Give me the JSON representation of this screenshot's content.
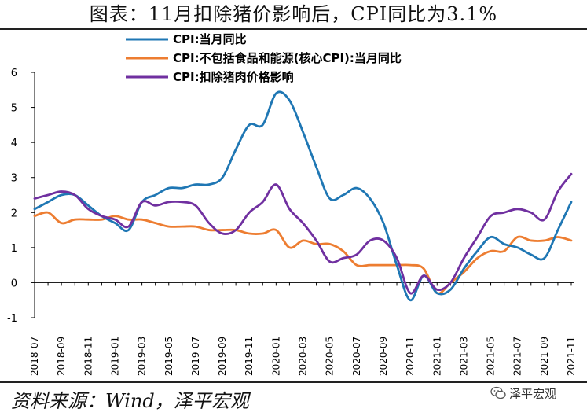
{
  "title": "图表：11月扣除猪价影响后，CPI同比为3.1%",
  "source": "资料来源：Wind，泽平宏观",
  "watermark": {
    "text": "泽平宏观",
    "icon": "wechat-icon"
  },
  "chart_data": {
    "type": "line",
    "ylim": [
      -1,
      6
    ],
    "yticks": [
      -1,
      0,
      1,
      2,
      3,
      4,
      5,
      6
    ],
    "x": [
      "2018-07",
      "2018-08",
      "2018-09",
      "2018-10",
      "2018-11",
      "2018-12",
      "2019-01",
      "2019-02",
      "2019-03",
      "2019-04",
      "2019-05",
      "2019-06",
      "2019-07",
      "2019-08",
      "2019-09",
      "2019-10",
      "2019-11",
      "2019-12",
      "2020-01",
      "2020-02",
      "2020-03",
      "2020-04",
      "2020-05",
      "2020-06",
      "2020-07",
      "2020-08",
      "2020-09",
      "2020-10",
      "2020-11",
      "2020-12",
      "2021-01",
      "2021-02",
      "2021-03",
      "2021-04",
      "2021-05",
      "2021-06",
      "2021-07",
      "2021-08",
      "2021-09",
      "2021-10",
      "2021-11"
    ],
    "xtick_labels": [
      "2018-07",
      "2018-09",
      "2018-11",
      "2019-01",
      "2019-03",
      "2019-05",
      "2019-07",
      "2019-09",
      "2019-11",
      "2020-01",
      "2020-03",
      "2020-05",
      "2020-07",
      "2020-09",
      "2020-11",
      "2021-01",
      "2021-03",
      "2021-05",
      "2021-07",
      "2021-09",
      "2021-11"
    ],
    "grid": false,
    "legend_position": "top",
    "series": [
      {
        "name": "CPI:当月同比",
        "color": "#1f77b4",
        "values": [
          2.1,
          2.3,
          2.5,
          2.5,
          2.2,
          1.9,
          1.7,
          1.5,
          2.3,
          2.5,
          2.7,
          2.7,
          2.8,
          2.8,
          3.0,
          3.8,
          4.5,
          4.5,
          5.4,
          5.2,
          4.3,
          3.3,
          2.4,
          2.5,
          2.7,
          2.4,
          1.7,
          0.5,
          -0.5,
          0.2,
          -0.3,
          -0.2,
          0.4,
          0.9,
          1.3,
          1.1,
          1.0,
          0.8,
          0.7,
          1.5,
          2.3
        ]
      },
      {
        "name": "CPI:不包括食品和能源(核心CPI):当月同比",
        "color": "#ed7d31",
        "values": [
          1.9,
          2.0,
          1.7,
          1.8,
          1.8,
          1.8,
          1.9,
          1.8,
          1.8,
          1.7,
          1.6,
          1.6,
          1.6,
          1.5,
          1.5,
          1.5,
          1.4,
          1.4,
          1.5,
          1.0,
          1.2,
          1.1,
          1.1,
          0.9,
          0.5,
          0.5,
          0.5,
          0.5,
          0.5,
          0.4,
          -0.3,
          0.0,
          0.3,
          0.7,
          0.9,
          0.9,
          1.3,
          1.2,
          1.2,
          1.3,
          1.2
        ]
      },
      {
        "name": "CPI:扣除猪肉价格影响",
        "color": "#7030a0",
        "values": [
          2.4,
          2.5,
          2.6,
          2.5,
          2.1,
          1.9,
          1.8,
          1.6,
          2.3,
          2.2,
          2.3,
          2.3,
          2.2,
          1.7,
          1.4,
          1.5,
          2.0,
          2.3,
          2.8,
          2.1,
          1.7,
          1.2,
          0.6,
          0.7,
          0.8,
          1.2,
          1.2,
          0.7,
          -0.3,
          0.2,
          -0.2,
          0.0,
          0.7,
          1.3,
          1.9,
          2.0,
          2.1,
          2.0,
          1.8,
          2.6,
          3.1
        ]
      }
    ]
  }
}
